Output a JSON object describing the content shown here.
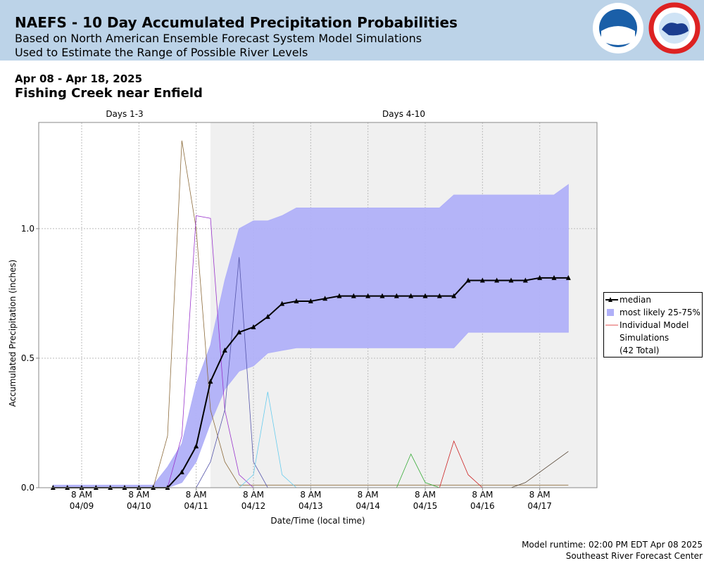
{
  "chart_data": {
    "type": "line",
    "title": "NAEFS - 10 Day Accumulated Precipitation Probabilities",
    "subtitles": [
      "Based on North American Ensemble Forecast System Model Simulations",
      "Used to Estimate the Range of Possible River Levels"
    ],
    "period": "Apr 08 - Apr 18, 2025",
    "location": "Fishing Creek near Enfield",
    "regions": [
      {
        "label": "Days 1-3",
        "start": "04/08 14:00",
        "end": "04/11 14:00",
        "color": "#ffffff"
      },
      {
        "label": "Days 4-10",
        "start": "04/11 14:00",
        "end": "04/18 08:00",
        "color": "#f0f0f0"
      }
    ],
    "xlabel": "Date/Time (local time)",
    "ylabel": "Accumulated Precipitation (inches)",
    "xlim": [
      "04/08 14:00",
      "04/18 08:00"
    ],
    "xticks": [
      {
        "value": "04/09 08:00",
        "label": "8 AM\n04/09"
      },
      {
        "value": "04/10 08:00",
        "label": "8 AM\n04/10"
      },
      {
        "value": "04/11 08:00",
        "label": "8 AM\n04/11"
      },
      {
        "value": "04/12 08:00",
        "label": "8 AM\n04/12"
      },
      {
        "value": "04/13 08:00",
        "label": "8 AM\n04/13"
      },
      {
        "value": "04/14 08:00",
        "label": "8 AM\n04/14"
      },
      {
        "value": "04/15 08:00",
        "label": "8 AM\n04/15"
      },
      {
        "value": "04/16 08:00",
        "label": "8 AM\n04/16"
      },
      {
        "value": "04/17 08:00",
        "label": "8 AM\n04/17"
      }
    ],
    "ylim": [
      0,
      1.41
    ],
    "yticks": [
      {
        "value": 0,
        "label": "0.0"
      },
      0.5,
      {
        "value": 1,
        "label": "1.0"
      }
    ],
    "grid": true,
    "x": [
      "04/08 20:00",
      "04/09 02:00",
      "04/09 08:00",
      "04/09 14:00",
      "04/09 20:00",
      "04/10 02:00",
      "04/10 08:00",
      "04/10 14:00",
      "04/10 20:00",
      "04/11 02:00",
      "04/11 08:00",
      "04/11 14:00",
      "04/11 20:00",
      "04/12 02:00",
      "04/12 08:00",
      "04/12 14:00",
      "04/12 20:00",
      "04/13 02:00",
      "04/13 08:00",
      "04/13 14:00",
      "04/13 20:00",
      "04/14 02:00",
      "04/14 08:00",
      "04/14 14:00",
      "04/14 20:00",
      "04/15 02:00",
      "04/15 08:00",
      "04/15 14:00",
      "04/15 20:00",
      "04/16 02:00",
      "04/16 08:00",
      "04/16 14:00",
      "04/16 20:00",
      "04/17 02:00",
      "04/17 08:00",
      "04/17 14:00",
      "04/17 20:00"
    ],
    "median": {
      "name": "median",
      "color": "#000000",
      "values": [
        0,
        0,
        0,
        0,
        0,
        0,
        0,
        0,
        0,
        0.06,
        0.16,
        0.41,
        0.53,
        0.6,
        0.62,
        0.66,
        0.71,
        0.72,
        0.72,
        0.73,
        0.74,
        0.74,
        0.74,
        0.74,
        0.74,
        0.74,
        0.74,
        0.74,
        0.74,
        0.8,
        0.8,
        0.8,
        0.8,
        0.8,
        0.81,
        0.81,
        0.81
      ]
    },
    "band": {
      "name": "most likely 25-75%",
      "color": "#b0b0f8",
      "upper": [
        0.01,
        0.01,
        0.01,
        0.01,
        0.01,
        0.01,
        0.01,
        0.01,
        0.08,
        0.17,
        0.4,
        0.55,
        0.8,
        1.0,
        1.03,
        1.03,
        1.05,
        1.08,
        1.08,
        1.08,
        1.08,
        1.08,
        1.08,
        1.08,
        1.08,
        1.08,
        1.08,
        1.08,
        1.13,
        1.13,
        1.13,
        1.13,
        1.13,
        1.13,
        1.13,
        1.13,
        1.17
      ],
      "lower": [
        0,
        0,
        0,
        0,
        0,
        0,
        0,
        0,
        0,
        0.02,
        0.1,
        0.25,
        0.38,
        0.45,
        0.47,
        0.52,
        0.53,
        0.54,
        0.54,
        0.54,
        0.54,
        0.54,
        0.54,
        0.54,
        0.54,
        0.54,
        0.54,
        0.54,
        0.54,
        0.6,
        0.6,
        0.6,
        0.6,
        0.6,
        0.6,
        0.6,
        0.6
      ]
    },
    "simulation_label": "Individual Model Simulations",
    "simulation_count": "(42 Total)",
    "simulations": [
      {
        "color": "#8b6a3a",
        "values": [
          0,
          0,
          0,
          0,
          0,
          0,
          0,
          0,
          0.2,
          1.34,
          1.0,
          0.3,
          0.1,
          0.01,
          0.01,
          0.01,
          0.01,
          0.01,
          0.01,
          0.01,
          0.01,
          0.01,
          0.01,
          0.01,
          0.01,
          0.01,
          0.01,
          0.01,
          0.01,
          0.01,
          0.01,
          0.01,
          0.01,
          0.01,
          0.01,
          0.01,
          0.01
        ]
      },
      {
        "color": "#9933cc",
        "values": [
          0,
          0,
          0,
          0,
          0,
          0,
          0,
          0,
          0,
          0.2,
          1.05,
          1.04,
          0.3,
          0.05,
          0,
          0,
          0,
          0,
          0,
          0,
          0,
          0,
          0,
          0,
          0,
          0,
          0,
          0,
          0,
          0,
          0,
          0,
          0,
          0,
          0,
          0,
          0
        ]
      },
      {
        "color": "#5555aa",
        "values": [
          0,
          0,
          0,
          0,
          0,
          0,
          0,
          0,
          0,
          0,
          0,
          0.1,
          0.3,
          0.89,
          0.1,
          0,
          0,
          0,
          0,
          0,
          0,
          0,
          0,
          0,
          0,
          0,
          0,
          0,
          0,
          0,
          0,
          0,
          0,
          0,
          0,
          0,
          0
        ]
      },
      {
        "color": "#66ccee",
        "values": [
          0,
          0,
          0,
          0,
          0,
          0,
          0,
          0,
          0,
          0,
          0,
          0,
          0,
          0,
          0.05,
          0.37,
          0.05,
          0,
          0,
          0,
          0,
          0,
          0,
          0,
          0,
          0,
          0,
          0,
          0,
          0,
          0,
          0,
          0,
          0,
          0,
          0,
          0
        ]
      },
      {
        "color": "#33aa33",
        "values": [
          0,
          0,
          0,
          0,
          0,
          0,
          0,
          0,
          0,
          0,
          0,
          0,
          0,
          0,
          0,
          0,
          0,
          0,
          0,
          0,
          0,
          0,
          0,
          0,
          0,
          0.13,
          0.02,
          0,
          0,
          0,
          0,
          0,
          0,
          0,
          0,
          0,
          0
        ]
      },
      {
        "color": "#cc2222",
        "values": [
          0,
          0,
          0,
          0,
          0,
          0,
          0,
          0,
          0,
          0,
          0,
          0,
          0,
          0,
          0,
          0,
          0,
          0,
          0,
          0,
          0,
          0,
          0,
          0,
          0,
          0,
          0,
          0,
          0.18,
          0.05,
          0,
          0,
          0,
          0,
          0,
          0,
          0
        ]
      },
      {
        "color": "#554433",
        "values": [
          0,
          0,
          0,
          0,
          0,
          0,
          0,
          0,
          0,
          0,
          0,
          0,
          0,
          0,
          0,
          0,
          0,
          0,
          0,
          0,
          0,
          0,
          0,
          0,
          0,
          0,
          0,
          0,
          0,
          0,
          0,
          0,
          0,
          0.02,
          0.06,
          0.1,
          0.14
        ]
      }
    ],
    "footnotes": [
      "Model runtime: 02:00 PM EDT Apr 08 2025",
      "Southeast River Forecast Center"
    ]
  }
}
